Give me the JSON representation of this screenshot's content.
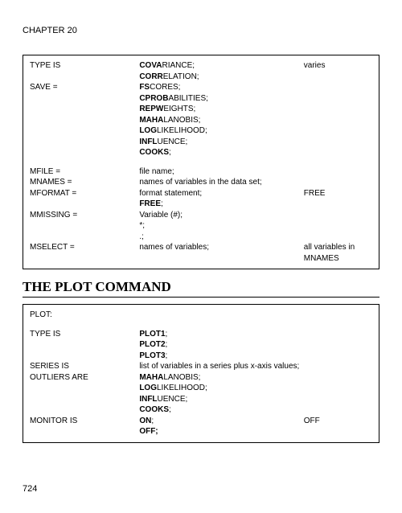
{
  "chapter": "CHAPTER 20",
  "pageNumber": "724",
  "table1": {
    "rows": [
      {
        "c1": "TYPE IS",
        "c2_pre": "COVA",
        "c2_rest": "RIANCE;",
        "c3": "varies"
      },
      {
        "c1": "",
        "c2_pre": "CORR",
        "c2_rest": "ELATION;",
        "c3": ""
      },
      {
        "c1": "SAVE =",
        "c2_pre": "FS",
        "c2_rest": "CORES;",
        "c3": ""
      },
      {
        "c1": "",
        "c2_pre": "CPROB",
        "c2_rest": "ABILITIES;",
        "c3": ""
      },
      {
        "c1": "",
        "c2_pre": "REPW",
        "c2_rest": "EIGHTS;",
        "c3": ""
      },
      {
        "c1": "",
        "c2_pre": "MAHA",
        "c2_rest": "LANOBIS;",
        "c3": ""
      },
      {
        "c1": "",
        "c2_pre": "LOG",
        "c2_rest": "LIKELIHOOD;",
        "c3": ""
      },
      {
        "c1": "",
        "c2_pre": "INFL",
        "c2_rest": "UENCE;",
        "c3": ""
      },
      {
        "c1": "",
        "c2_pre": "COOKS",
        "c2_rest": ";",
        "c3": ""
      }
    ],
    "rows2": [
      {
        "c1": "MFILE =",
        "c2": "file name;",
        "c3": ""
      },
      {
        "c1": "MNAMES =",
        "c2": "names of variables in the data set;",
        "c3": ""
      },
      {
        "c1": "MFORMAT =",
        "c2": "format statement;",
        "c3": "FREE"
      },
      {
        "c1": "",
        "c2_pre": "FREE",
        "c2_rest": ";",
        "c3": ""
      },
      {
        "c1": "MMISSING =",
        "c2": "Variable (#);",
        "c3": ""
      },
      {
        "c1": "",
        "c2": "*;",
        "c3": ""
      },
      {
        "c1": "",
        "c2": ".;",
        "c3": ""
      },
      {
        "c1": "MSELECT =",
        "c2": "names of variables;",
        "c3": "all variables in MNAMES"
      }
    ]
  },
  "sectionTitle": "THE PLOT COMMAND",
  "table2": {
    "header": "PLOT:",
    "rows": [
      {
        "c1": "TYPE IS",
        "c2_pre": "PLOT1",
        "c2_rest": ";",
        "c3": ""
      },
      {
        "c1": "",
        "c2_pre": "PLOT2",
        "c2_rest": ";",
        "c3": ""
      },
      {
        "c1": "",
        "c2_pre": "PLOT3",
        "c2_rest": ";",
        "c3": ""
      },
      {
        "c1": "SERIES IS",
        "c2": "list of variables in a series plus x-axis values;",
        "c3": ""
      },
      {
        "c1": "OUTLIERS ARE",
        "c2_pre": "MAHA",
        "c2_rest": "LANOBIS;",
        "c3": ""
      },
      {
        "c1": "",
        "c2_pre": "LOG",
        "c2_rest": "LIKELIHOOD;",
        "c3": ""
      },
      {
        "c1": "",
        "c2_pre": "INFL",
        "c2_rest": "UENCE;",
        "c3": ""
      },
      {
        "c1": "",
        "c2_pre": "COOKS",
        "c2_rest": ";",
        "c3": ""
      },
      {
        "c1": "MONITOR IS",
        "c2_pre": "ON",
        "c2_rest": ";",
        "c3": "OFF"
      },
      {
        "c1": "",
        "c2_pre": "OFF;",
        "c2_rest": "",
        "c3": ""
      }
    ]
  }
}
